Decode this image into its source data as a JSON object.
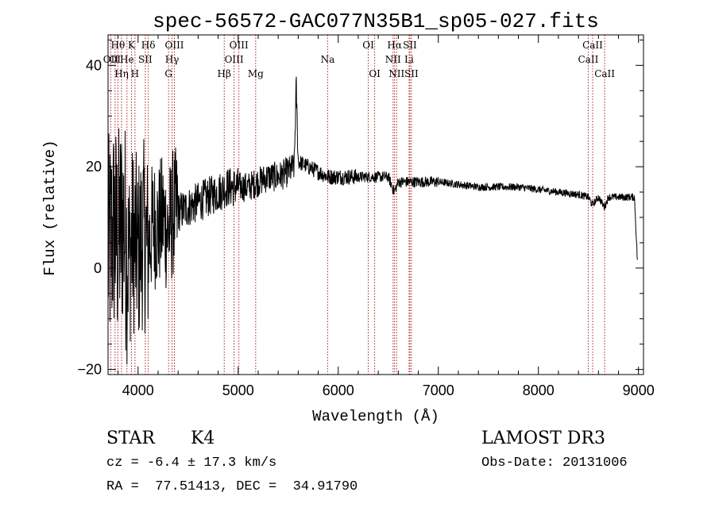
{
  "header": {
    "title": "spec-56572-GAC077N35B1_sp05-027.fits"
  },
  "footer": {
    "class_label": "STAR",
    "subclass_label": "K4",
    "survey": "LAMOST DR3",
    "cz_text": "cz = -6.4 ± 17.3 km/s",
    "obs_date": "Obs-Date: 20131006",
    "coords": "RA =  77.51413, DEC =  34.91790"
  },
  "colors": {
    "line_marker": "#b22222",
    "spectrum": "#000000"
  },
  "chart_data": {
    "type": "line",
    "title": "spec-56572-GAC077N35B1_sp05-027.fits",
    "xlabel": "Wavelength (Å)",
    "ylabel": "Flux (relative)",
    "xlim": [
      3700,
      9050
    ],
    "ylim": [
      -21,
      46
    ],
    "xticks": [
      4000,
      5000,
      6000,
      7000,
      8000,
      9000
    ],
    "yticks": [
      -20,
      0,
      20,
      40
    ],
    "series": [
      {
        "name": "flux",
        "x": [
          3700,
          3760,
          3800,
          3850,
          3900,
          3950,
          4000,
          4050,
          4100,
          4150,
          4200,
          4250,
          4300,
          4350,
          4400,
          4500,
          4600,
          4700,
          4800,
          4900,
          5000,
          5100,
          5200,
          5300,
          5400,
          5500,
          5560,
          5580,
          5600,
          5700,
          5800,
          5900,
          6000,
          6100,
          6200,
          6300,
          6400,
          6500,
          6560,
          6600,
          6700,
          6800,
          6900,
          7000,
          7200,
          7400,
          7600,
          7800,
          8000,
          8200,
          8400,
          8500,
          8540,
          8600,
          8660,
          8700,
          8800,
          8900,
          8960,
          8990
        ],
        "y": [
          3,
          8,
          5,
          10,
          2,
          6,
          3,
          7,
          4,
          9,
          8,
          10,
          7,
          11,
          11,
          12,
          13,
          14,
          15,
          16,
          16,
          16,
          17,
          18,
          18,
          19,
          20,
          36,
          21,
          20,
          19,
          18,
          18,
          18,
          18,
          18,
          18,
          18,
          15,
          17,
          17,
          17,
          17,
          17,
          16.5,
          16,
          16,
          16,
          15.5,
          15,
          14.5,
          14,
          12.5,
          14,
          12,
          14,
          14,
          14,
          14,
          1
        ]
      }
    ],
    "lines": [
      {
        "label": "OII",
        "x": 3727,
        "row": 2
      },
      {
        "label": "Hθ",
        "x": 3798,
        "row": 1
      },
      {
        "label": "OI",
        "x": 3770,
        "row": 2
      },
      {
        "label": "He",
        "x": 3889,
        "row": 2
      },
      {
        "label": "Hη",
        "x": 3835,
        "row": 3
      },
      {
        "label": "K",
        "x": 3934,
        "row": 1
      },
      {
        "label": "H",
        "x": 3969,
        "row": 3
      },
      {
        "label": "SII",
        "x": 4072,
        "row": 2
      },
      {
        "label": "Hδ",
        "x": 4102,
        "row": 1
      },
      {
        "label": "G",
        "x": 4305,
        "row": 3
      },
      {
        "label": "Hγ",
        "x": 4340,
        "row": 2
      },
      {
        "label": "OIII",
        "x": 4363,
        "row": 1
      },
      {
        "label": "Hβ",
        "x": 4861,
        "row": 3
      },
      {
        "label": "OIII",
        "x": 4959,
        "row": 2
      },
      {
        "label": "OIII",
        "x": 5007,
        "row": 1
      },
      {
        "label": "Mg",
        "x": 5175,
        "row": 3
      },
      {
        "label": "Na",
        "x": 5894,
        "row": 2
      },
      {
        "label": "OI",
        "x": 6300,
        "row": 1
      },
      {
        "label": "OI",
        "x": 6364,
        "row": 3
      },
      {
        "label": "NII",
        "x": 6548,
        "row": 2
      },
      {
        "label": "Hα",
        "x": 6563,
        "row": 1
      },
      {
        "label": "NII",
        "x": 6583,
        "row": 3
      },
      {
        "label": "Li",
        "x": 6708,
        "row": 2
      },
      {
        "label": "SII",
        "x": 6716,
        "row": 1
      },
      {
        "label": "SII",
        "x": 6731,
        "row": 3
      },
      {
        "label": "CaII",
        "x": 8498,
        "row": 2
      },
      {
        "label": "CaII",
        "x": 8542,
        "row": 1
      },
      {
        "label": "CaII",
        "x": 8662,
        "row": 3
      }
    ]
  }
}
